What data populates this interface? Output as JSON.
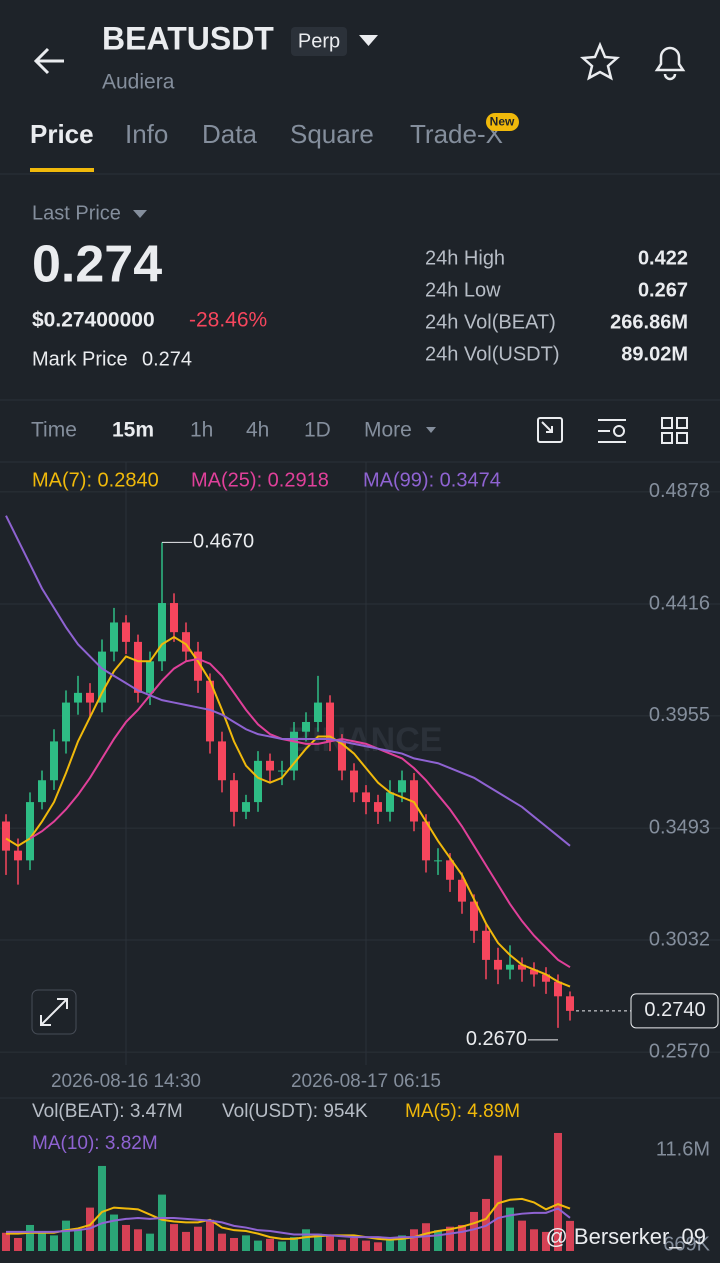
{
  "header": {
    "symbol": "BEATUSDT",
    "badge": "Perp",
    "name": "Audiera"
  },
  "tabs": [
    "Price",
    "Info",
    "Data",
    "Square",
    "Trade-X"
  ],
  "new_badge": "New",
  "ticker": {
    "last_price_label": "Last Price",
    "last_price": "0.274",
    "usd_price": "$0.27400000",
    "change": "-28.46%",
    "mark_label": "Mark Price",
    "mark_price": "0.274",
    "stats": [
      [
        "24h High",
        "0.422"
      ],
      [
        "24h Low",
        "0.267"
      ],
      [
        "24h Vol(BEAT)",
        "266.86M"
      ],
      [
        "24h Vol(USDT)",
        "89.02M"
      ]
    ]
  },
  "intervals": [
    "Time",
    "15m",
    "1h",
    "4h",
    "1D",
    "More"
  ],
  "chart_data": {
    "type": "candlestick",
    "categories": [
      null,
      null,
      null,
      null,
      null,
      null,
      null,
      null,
      null,
      null,
      "2026-08-16 14:30",
      null,
      null,
      null,
      null,
      null,
      null,
      null,
      null,
      null,
      null,
      null,
      null,
      null,
      null,
      null,
      null,
      null,
      null,
      null,
      "2026-08-17 06:15",
      null,
      null,
      null,
      null,
      null,
      null,
      null,
      null,
      null,
      null,
      null,
      null,
      null,
      null,
      null,
      null,
      null
    ],
    "open": [
      0.352,
      0.34,
      0.336,
      0.36,
      0.369,
      0.385,
      0.401,
      0.405,
      0.401,
      0.422,
      0.434,
      0.426,
      0.405,
      0.418,
      0.442,
      0.43,
      0.422,
      0.41,
      0.385,
      0.369,
      0.356,
      0.36,
      0.377,
      0.373,
      0.373,
      0.389,
      0.393,
      0.401,
      0.385,
      0.373,
      0.364,
      0.36,
      0.356,
      0.364,
      0.369,
      0.352,
      0.336,
      0.336,
      0.328,
      0.319,
      0.307,
      0.295,
      0.291,
      0.293,
      0.291,
      0.289,
      0.286,
      0.28
    ],
    "high": [
      0.355,
      0.345,
      0.364,
      0.373,
      0.39,
      0.406,
      0.412,
      0.409,
      0.427,
      0.44,
      0.437,
      0.429,
      0.422,
      0.467,
      0.446,
      0.434,
      0.426,
      0.413,
      0.389,
      0.372,
      0.363,
      0.381,
      0.38,
      0.377,
      0.393,
      0.397,
      0.412,
      0.404,
      0.388,
      0.376,
      0.367,
      0.363,
      0.369,
      0.373,
      0.372,
      0.355,
      0.341,
      0.339,
      0.331,
      0.322,
      0.31,
      0.3,
      0.301,
      0.296,
      0.294,
      0.292,
      0.289,
      0.282
    ],
    "low": [
      0.33,
      0.326,
      0.332,
      0.357,
      0.365,
      0.38,
      0.396,
      0.395,
      0.397,
      0.418,
      0.421,
      0.401,
      0.4,
      0.414,
      0.426,
      0.418,
      0.405,
      0.38,
      0.364,
      0.35,
      0.353,
      0.356,
      0.368,
      0.367,
      0.369,
      0.385,
      0.389,
      0.381,
      0.369,
      0.36,
      0.355,
      0.351,
      0.352,
      0.36,
      0.348,
      0.331,
      0.33,
      0.323,
      0.314,
      0.302,
      0.287,
      0.285,
      0.287,
      0.286,
      0.284,
      0.281,
      0.267,
      0.27
    ],
    "close": [
      0.34,
      0.336,
      0.36,
      0.369,
      0.385,
      0.401,
      0.405,
      0.401,
      0.422,
      0.434,
      0.426,
      0.405,
      0.418,
      0.442,
      0.43,
      0.422,
      0.41,
      0.385,
      0.369,
      0.356,
      0.36,
      0.377,
      0.373,
      0.373,
      0.389,
      0.393,
      0.401,
      0.385,
      0.373,
      0.364,
      0.36,
      0.356,
      0.364,
      0.369,
      0.352,
      0.336,
      0.336,
      0.328,
      0.319,
      0.307,
      0.295,
      0.291,
      0.293,
      0.291,
      0.289,
      0.286,
      0.28,
      0.274
    ],
    "up_color": "#2ebd85",
    "down_color": "#f6465d",
    "ylim": [
      0.2517,
      0.5001
    ],
    "yticks": [
      0.4878,
      0.4416,
      0.3955,
      0.3493,
      0.3032,
      {
        "value": 0.257,
        "label": "0.2570"
      }
    ],
    "grid": true,
    "series": [
      {
        "name": "MA(7): 0.2840",
        "color": "#f0b90b",
        "values": [
          0.345,
          0.342,
          0.345,
          0.352,
          0.36,
          0.372,
          0.385,
          0.395,
          0.405,
          0.414,
          0.42,
          0.418,
          0.418,
          0.425,
          0.428,
          0.425,
          0.418,
          0.41,
          0.398,
          0.385,
          0.375,
          0.37,
          0.368,
          0.37,
          0.376,
          0.382,
          0.387,
          0.387,
          0.384,
          0.38,
          0.374,
          0.368,
          0.364,
          0.362,
          0.36,
          0.352,
          0.344,
          0.337,
          0.33,
          0.32,
          0.31,
          0.302,
          0.297,
          0.293,
          0.291,
          0.289,
          0.286,
          0.284
        ]
      },
      {
        "name": "MA(25): 0.2918",
        "color": "#e0409a",
        "values": [
          null,
          null,
          0.345,
          0.348,
          0.352,
          0.357,
          0.363,
          0.37,
          0.378,
          0.386,
          0.393,
          0.398,
          0.404,
          0.41,
          0.415,
          0.418,
          0.419,
          0.417,
          0.412,
          0.405,
          0.398,
          0.392,
          0.388,
          0.386,
          0.385,
          0.384,
          0.384,
          0.385,
          0.386,
          0.385,
          0.384,
          0.382,
          0.38,
          0.378,
          0.374,
          0.369,
          0.363,
          0.357,
          0.35,
          0.342,
          0.334,
          0.326,
          0.318,
          0.311,
          0.305,
          0.3,
          0.295,
          0.292
        ]
      },
      {
        "name": "MA(99): 0.3474",
        "color": "#8f63d2",
        "values": [
          0.478,
          0.468,
          0.458,
          0.448,
          0.44,
          0.432,
          0.425,
          0.42,
          0.415,
          0.412,
          0.409,
          0.406,
          0.404,
          0.402,
          0.401,
          0.4,
          0.399,
          0.398,
          0.396,
          0.393,
          0.39,
          0.388,
          0.387,
          0.386,
          0.386,
          0.386,
          0.386,
          0.386,
          0.385,
          0.384,
          0.383,
          0.382,
          0.381,
          0.38,
          0.378,
          0.377,
          0.376,
          0.374,
          0.372,
          0.37,
          0.367,
          0.364,
          0.361,
          0.358,
          0.354,
          0.35,
          0.346,
          0.342
        ]
      }
    ],
    "high_marker": {
      "value": 0.467,
      "label": "0.4670"
    },
    "low_marker": {
      "value": 0.267,
      "label": "0.2670"
    },
    "last_marker": {
      "value": 0.274,
      "label": "0.2740"
    },
    "watermark": "BINANCE",
    "volume": {
      "labels": [
        "Vol(BEAT): 3.47M",
        "Vol(USDT): 954K"
      ],
      "values": [
        2.1,
        1.5,
        3.0,
        2.2,
        1.8,
        3.5,
        2.4,
        5.0,
        9.8,
        4.2,
        3.0,
        2.5,
        2.0,
        6.5,
        3.1,
        2.2,
        2.8,
        3.6,
        2.0,
        1.5,
        1.8,
        1.2,
        1.4,
        1.1,
        1.6,
        2.5,
        2.0,
        1.8,
        1.3,
        1.5,
        1.2,
        1.0,
        1.4,
        1.8,
        2.5,
        3.2,
        2.4,
        2.8,
        3.0,
        4.5,
        6.0,
        11.0,
        5.0,
        3.5,
        2.5,
        2.2,
        13.6,
        3.47
      ],
      "ylim": [
        0,
        17.4
      ],
      "yticks": [
        {
          "value": 11.6,
          "label": "11.6M"
        },
        {
          "value": 0.669,
          "label": "669K"
        }
      ],
      "series": [
        {
          "name": "MA(5): 4.89M",
          "color": "#f0b90b",
          "values": [
            2.0,
            2.0,
            2.1,
            2.1,
            2.1,
            2.4,
            2.6,
            3.0,
            4.5,
            5.0,
            4.9,
            4.8,
            4.2,
            3.6,
            3.4,
            3.3,
            3.3,
            3.6,
            2.7,
            2.4,
            2.3,
            2.0,
            1.6,
            1.4,
            1.4,
            1.6,
            1.7,
            1.8,
            1.8,
            1.8,
            1.6,
            1.4,
            1.3,
            1.4,
            1.6,
            2.0,
            2.3,
            2.5,
            2.8,
            3.2,
            3.7,
            5.5,
            5.9,
            6.0,
            5.6,
            4.8,
            5.4,
            4.89
          ]
        },
        {
          "name": "MA(10): 3.82M",
          "color": "#8f63d2",
          "values": [
            2.2,
            2.2,
            2.2,
            2.2,
            2.2,
            2.3,
            2.4,
            2.6,
            3.2,
            3.5,
            3.7,
            3.8,
            3.7,
            3.8,
            3.8,
            3.7,
            3.6,
            3.5,
            3.3,
            2.9,
            2.7,
            2.4,
            2.3,
            2.1,
            1.9,
            1.9,
            1.9,
            1.8,
            1.7,
            1.6,
            1.6,
            1.6,
            1.5,
            1.6,
            1.6,
            1.7,
            1.8,
            2.0,
            2.2,
            2.5,
            2.9,
            3.8,
            4.1,
            4.3,
            4.4,
            4.4,
            4.9,
            3.82
          ]
        }
      ]
    }
  },
  "watermark": "@ Berserker_09"
}
